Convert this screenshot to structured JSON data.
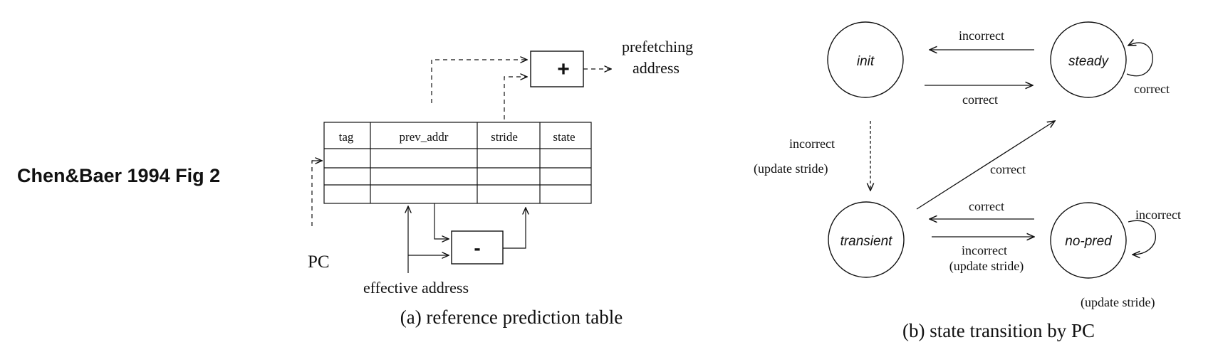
{
  "side_label": "Chen&Baer 1994 Fig 2",
  "rpt": {
    "caption": "(a) reference prediction table",
    "columns": [
      "tag",
      "prev_addr",
      "stride",
      "state"
    ],
    "adder_symbol": "+",
    "subtractor_symbol": "-",
    "output_label_line1": "prefetching",
    "output_label_line2": "address",
    "pc_label": "PC",
    "ea_label": "effective address"
  },
  "fsm": {
    "caption": "(b) state transition by PC",
    "states": {
      "init": "init",
      "steady": "steady",
      "transient": "transient",
      "no_pred": "no-pred"
    },
    "transitions": {
      "steady_to_init": "incorrect",
      "init_to_steady": "correct",
      "steady_self": "correct",
      "init_to_transient_1": "incorrect",
      "init_to_transient_2": "(update stride)",
      "transient_to_steady": "correct",
      "nopred_to_transient": "correct",
      "transient_to_nopred_1": "incorrect",
      "transient_to_nopred_2": "(update stride)",
      "nopred_self_1": "incorrect",
      "nopred_self_2": "(update stride)"
    }
  }
}
